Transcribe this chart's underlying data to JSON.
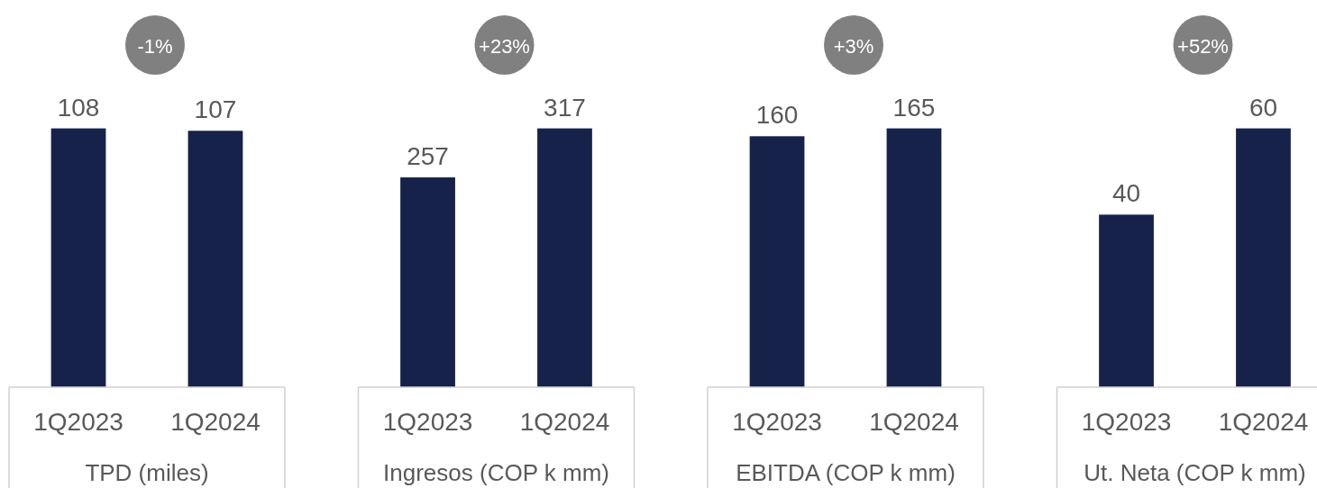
{
  "chart_data": [
    {
      "type": "bar",
      "categories": [
        "1Q2023",
        "1Q2024"
      ],
      "values": [
        108,
        107
      ],
      "color": "#16224a",
      "xlabel": "TPD (miles)",
      "data_labels": true,
      "annotations": [
        "-1%"
      ]
    },
    {
      "type": "bar",
      "categories": [
        "1Q2023",
        "1Q2024"
      ],
      "values": [
        257,
        317
      ],
      "color": "#16224a",
      "xlabel": "Ingresos (COP k mm)",
      "data_labels": true,
      "annotations": [
        "+23%"
      ]
    },
    {
      "type": "bar",
      "categories": [
        "1Q2023",
        "1Q2024"
      ],
      "values": [
        160,
        165
      ],
      "color": "#16224a",
      "xlabel": "EBITDA (COP k mm)",
      "data_labels": true,
      "annotations": [
        "+3%"
      ]
    },
    {
      "type": "bar",
      "categories": [
        "1Q2023",
        "1Q2024"
      ],
      "values": [
        40,
        60
      ],
      "color": "#16224a",
      "xlabel": "Ut. Neta (COP k mm)",
      "data_labels": true,
      "annotations": [
        "+52%"
      ]
    }
  ]
}
